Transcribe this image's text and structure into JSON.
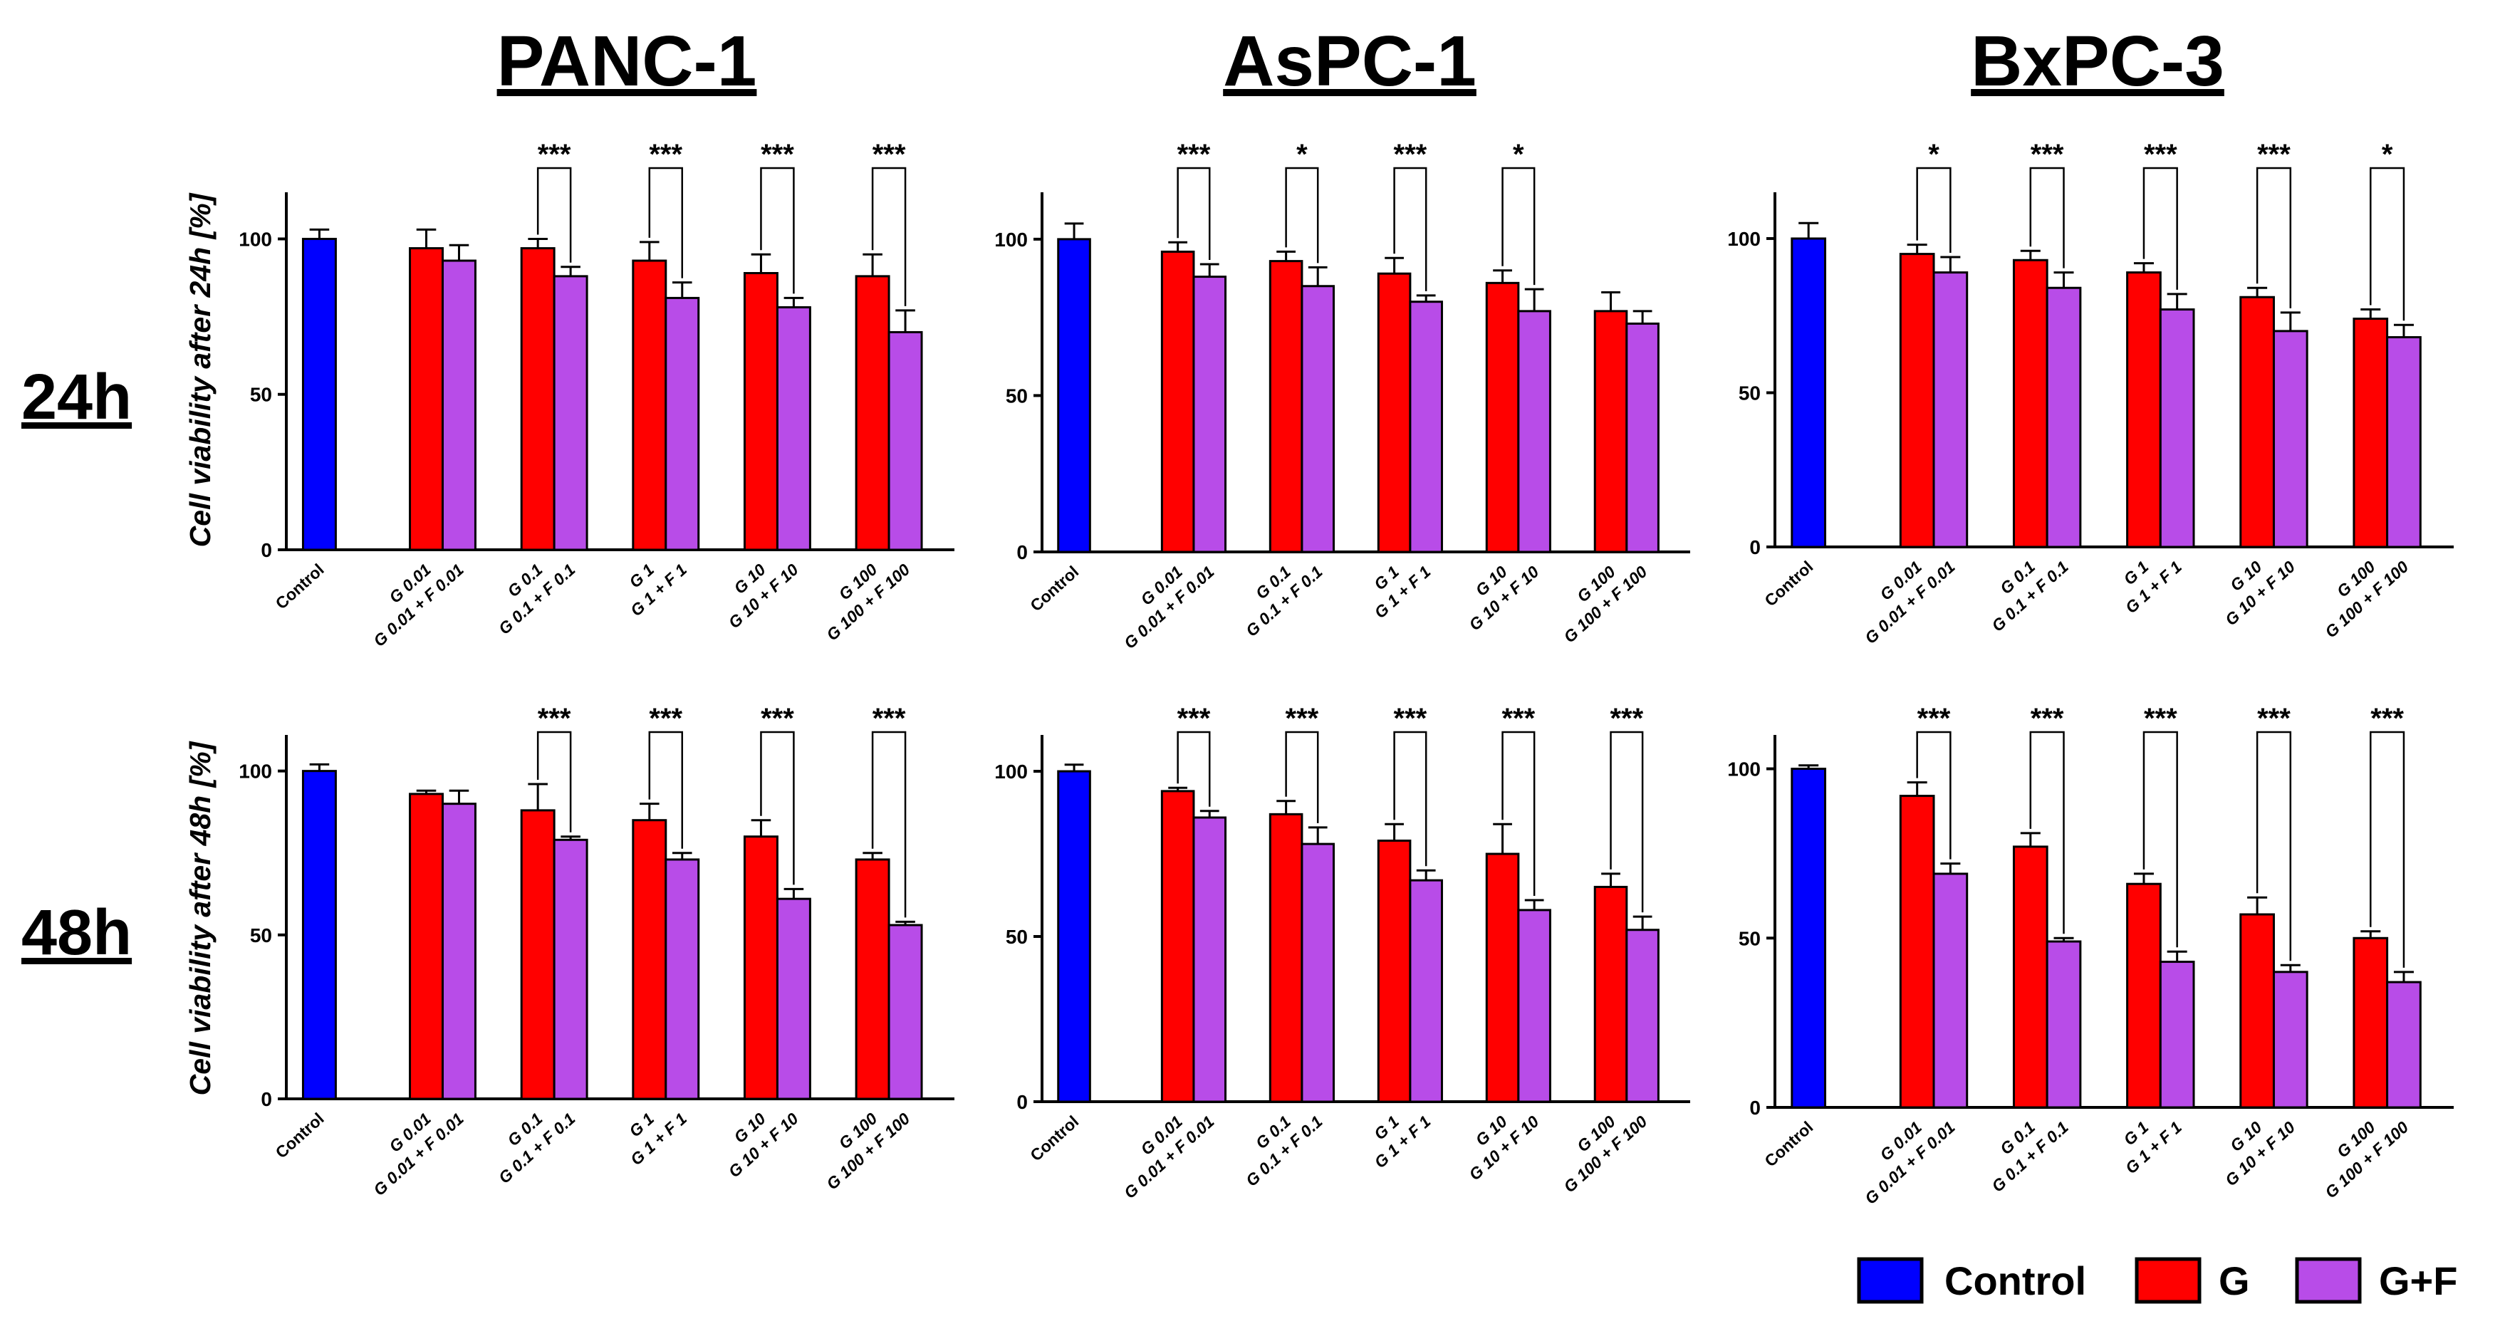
{
  "row_labels": [
    "24h",
    "48h"
  ],
  "legend": [
    {
      "key": "control",
      "label": "Control",
      "color": "#0000ff"
    },
    {
      "key": "g",
      "label": "G",
      "color": "#ff0000"
    },
    {
      "key": "gf",
      "label": "G+F",
      "color": "#b84ce8"
    }
  ],
  "chart_data": [
    {
      "type": "bar",
      "title": "PANC-1",
      "ylabel": "Cell viability after 24h [%]",
      "ylim": [
        0,
        115
      ],
      "yticks": [
        0,
        50,
        100
      ],
      "control": {
        "label": "Control",
        "value": 100,
        "err": 3
      },
      "groups": [
        {
          "g_label": "G 0.01",
          "gf_label": "G 0.01 + F 0.01",
          "g": 97,
          "g_err": 6,
          "gf": 93,
          "gf_err": 5,
          "sig": ""
        },
        {
          "g_label": "G 0.1",
          "gf_label": "G 0.1 + F 0.1",
          "g": 97,
          "g_err": 3,
          "gf": 88,
          "gf_err": 3,
          "sig": "***"
        },
        {
          "g_label": "G 1",
          "gf_label": "G 1 + F 1",
          "g": 93,
          "g_err": 6,
          "gf": 81,
          "gf_err": 5,
          "sig": "***"
        },
        {
          "g_label": "G 10",
          "gf_label": "G 10 + F 10",
          "g": 89,
          "g_err": 6,
          "gf": 78,
          "gf_err": 3,
          "sig": "***"
        },
        {
          "g_label": "G 100",
          "gf_label": "G 100 + F 100",
          "g": 88,
          "g_err": 7,
          "gf": 70,
          "gf_err": 7,
          "sig": "***"
        }
      ]
    },
    {
      "type": "bar",
      "title": "AsPC-1",
      "ylabel": "",
      "ylim": [
        0,
        115
      ],
      "yticks": [
        0,
        50,
        100
      ],
      "control": {
        "label": "Control",
        "value": 100,
        "err": 5
      },
      "groups": [
        {
          "g_label": "G 0.01",
          "gf_label": "G 0.01 + F 0.01",
          "g": 96,
          "g_err": 3,
          "gf": 88,
          "gf_err": 4,
          "sig": "***"
        },
        {
          "g_label": "G 0.1",
          "gf_label": "G 0.1 + F 0.1",
          "g": 93,
          "g_err": 3,
          "gf": 85,
          "gf_err": 6,
          "sig": "*"
        },
        {
          "g_label": "G 1",
          "gf_label": "G 1 + F 1",
          "g": 89,
          "g_err": 5,
          "gf": 80,
          "gf_err": 2,
          "sig": "***"
        },
        {
          "g_label": "G 10",
          "gf_label": "G 10 + F 10",
          "g": 86,
          "g_err": 4,
          "gf": 77,
          "gf_err": 7,
          "sig": "*"
        },
        {
          "g_label": "G 100",
          "gf_label": "G 100 + F 100",
          "g": 77,
          "g_err": 6,
          "gf": 73,
          "gf_err": 4,
          "sig": ""
        }
      ]
    },
    {
      "type": "bar",
      "title": "BxPC-3",
      "ylabel": "",
      "ylim": [
        0,
        115
      ],
      "yticks": [
        0,
        50,
        100
      ],
      "control": {
        "label": "Control",
        "value": 100,
        "err": 5
      },
      "groups": [
        {
          "g_label": "G 0.01",
          "gf_label": "G 0.01 + F 0.01",
          "g": 95,
          "g_err": 3,
          "gf": 89,
          "gf_err": 5,
          "sig": "*"
        },
        {
          "g_label": "G 0.1",
          "gf_label": "G 0.1 + F 0.1",
          "g": 93,
          "g_err": 3,
          "gf": 84,
          "gf_err": 5,
          "sig": "***"
        },
        {
          "g_label": "G 1",
          "gf_label": "G 1 + F 1",
          "g": 89,
          "g_err": 3,
          "gf": 77,
          "gf_err": 5,
          "sig": "***"
        },
        {
          "g_label": "G 10",
          "gf_label": "G 10 + F 10",
          "g": 81,
          "g_err": 3,
          "gf": 70,
          "gf_err": 6,
          "sig": "***"
        },
        {
          "g_label": "G 100",
          "gf_label": "G 100 + F 100",
          "g": 74,
          "g_err": 3,
          "gf": 68,
          "gf_err": 4,
          "sig": "*"
        }
      ]
    },
    {
      "type": "bar",
      "title": "",
      "ylabel": "Cell viability after 48h [%]",
      "ylim": [
        0,
        111
      ],
      "yticks": [
        0,
        50,
        100
      ],
      "control": {
        "label": "Control",
        "value": 100,
        "err": 2
      },
      "groups": [
        {
          "g_label": "G 0.01",
          "gf_label": "G 0.01 + F 0.01",
          "g": 93,
          "g_err": 1,
          "gf": 90,
          "gf_err": 4,
          "sig": ""
        },
        {
          "g_label": "G 0.1",
          "gf_label": "G 0.1 + F 0.1",
          "g": 88,
          "g_err": 8,
          "gf": 79,
          "gf_err": 1,
          "sig": "***"
        },
        {
          "g_label": "G 1",
          "gf_label": "G 1 + F 1",
          "g": 85,
          "g_err": 5,
          "gf": 73,
          "gf_err": 2,
          "sig": "***"
        },
        {
          "g_label": "G 10",
          "gf_label": "G 10 + F 10",
          "g": 80,
          "g_err": 5,
          "gf": 61,
          "gf_err": 3,
          "sig": "***"
        },
        {
          "g_label": "G 100",
          "gf_label": "G 100 + F 100",
          "g": 73,
          "g_err": 2,
          "gf": 53,
          "gf_err": 1,
          "sig": "***"
        }
      ]
    },
    {
      "type": "bar",
      "title": "",
      "ylabel": "",
      "ylim": [
        0,
        111
      ],
      "yticks": [
        0,
        50,
        100
      ],
      "control": {
        "label": "Control",
        "value": 100,
        "err": 2
      },
      "groups": [
        {
          "g_label": "G 0.01",
          "gf_label": "G 0.01 + F 0.01",
          "g": 94,
          "g_err": 1,
          "gf": 86,
          "gf_err": 2,
          "sig": "***"
        },
        {
          "g_label": "G 0.1",
          "gf_label": "G 0.1 + F 0.1",
          "g": 87,
          "g_err": 4,
          "gf": 78,
          "gf_err": 5,
          "sig": "***"
        },
        {
          "g_label": "G 1",
          "gf_label": "G 1 + F 1",
          "g": 79,
          "g_err": 5,
          "gf": 67,
          "gf_err": 3,
          "sig": "***"
        },
        {
          "g_label": "G 10",
          "gf_label": "G 10 + F 10",
          "g": 75,
          "g_err": 9,
          "gf": 58,
          "gf_err": 3,
          "sig": "***"
        },
        {
          "g_label": "G 100",
          "gf_label": "G 100 + F 100",
          "g": 65,
          "g_err": 4,
          "gf": 52,
          "gf_err": 4,
          "sig": "***"
        }
      ]
    },
    {
      "type": "bar",
      "title": "",
      "ylabel": "",
      "ylim": [
        0,
        110
      ],
      "yticks": [
        0,
        50,
        100
      ],
      "control": {
        "label": "Control",
        "value": 100,
        "err": 1
      },
      "groups": [
        {
          "g_label": "G 0.01",
          "gf_label": "G 0.01 + F 0.01",
          "g": 92,
          "g_err": 4,
          "gf": 69,
          "gf_err": 3,
          "sig": "***"
        },
        {
          "g_label": "G 0.1",
          "gf_label": "G 0.1 + F 0.1",
          "g": 77,
          "g_err": 4,
          "gf": 49,
          "gf_err": 1,
          "sig": "***"
        },
        {
          "g_label": "G 1",
          "gf_label": "G 1 + F 1",
          "g": 66,
          "g_err": 3,
          "gf": 43,
          "gf_err": 3,
          "sig": "***"
        },
        {
          "g_label": "G 10",
          "gf_label": "G 10 + F 10",
          "g": 57,
          "g_err": 5,
          "gf": 40,
          "gf_err": 2,
          "sig": "***"
        },
        {
          "g_label": "G 100",
          "gf_label": "G 100 + F 100",
          "g": 50,
          "g_err": 2,
          "gf": 37,
          "gf_err": 3,
          "sig": "***"
        }
      ]
    }
  ]
}
